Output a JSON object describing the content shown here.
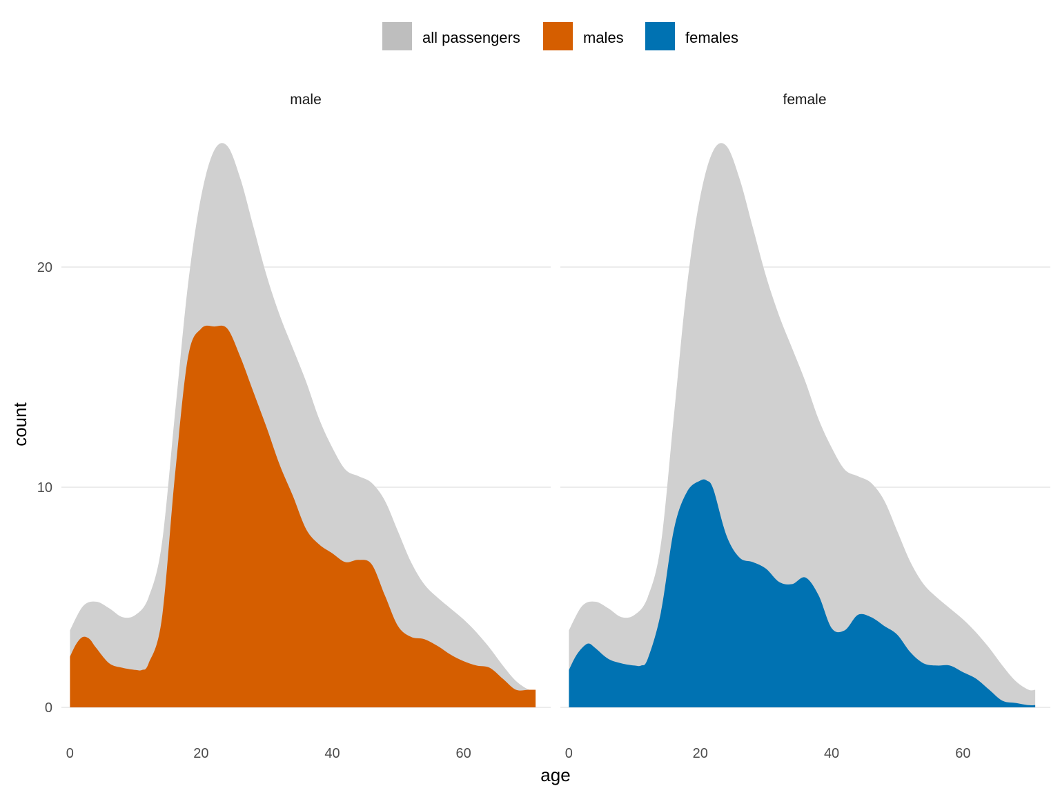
{
  "chart_data": {
    "type": "area",
    "xlabel": "age",
    "ylabel": "count",
    "xlim": [
      -1.3,
      73.3
    ],
    "ylim": [
      0,
      26
    ],
    "x_ticks": [
      0,
      20,
      40,
      60
    ],
    "y_ticks": [
      0,
      10,
      20
    ],
    "grid": true,
    "legend_position": "top",
    "legend": [
      {
        "label": "all passengers",
        "color": "#bebebe"
      },
      {
        "label": "males",
        "color": "#d55e00"
      },
      {
        "label": "females",
        "color": "#0072b2"
      }
    ],
    "all_passengers_color": "#d0d0d0",
    "facets": [
      {
        "label": "male",
        "fill_color": "#d55e00",
        "all_passengers": {
          "x": [
            0,
            2,
            4,
            6,
            8,
            10,
            12,
            14,
            16,
            18,
            20,
            22,
            24,
            26,
            28,
            30,
            32,
            34,
            36,
            38,
            40,
            42,
            44,
            46,
            48,
            50,
            52,
            54,
            56,
            58,
            60,
            62,
            64,
            66,
            68,
            70,
            71
          ],
          "y": [
            3.5,
            4.6,
            4.8,
            4.5,
            4.1,
            4.2,
            5.0,
            7.4,
            13.3,
            19.2,
            23.2,
            25.3,
            25.5,
            24.0,
            21.8,
            19.6,
            17.8,
            16.3,
            14.8,
            13.1,
            11.8,
            10.8,
            10.5,
            10.2,
            9.4,
            8.0,
            6.6,
            5.6,
            5.0,
            4.5,
            4.0,
            3.4,
            2.7,
            1.9,
            1.2,
            0.8,
            0.8
          ]
        },
        "group": {
          "x": [
            0,
            1,
            2,
            3,
            4,
            6,
            8,
            10,
            11,
            12,
            14,
            16,
            18,
            20,
            22,
            24,
            26,
            28,
            30,
            32,
            34,
            36,
            38,
            40,
            42,
            44,
            46,
            48,
            50,
            52,
            54,
            56,
            58,
            60,
            62,
            64,
            66,
            68,
            70,
            71
          ],
          "y": [
            2.3,
            2.9,
            3.2,
            3.1,
            2.7,
            2.0,
            1.8,
            1.7,
            1.7,
            2.0,
            4.0,
            10.5,
            15.9,
            17.2,
            17.3,
            17.2,
            15.9,
            14.3,
            12.7,
            11.0,
            9.6,
            8.1,
            7.4,
            7.0,
            6.6,
            6.7,
            6.5,
            5.1,
            3.7,
            3.2,
            3.1,
            2.8,
            2.4,
            2.1,
            1.9,
            1.8,
            1.3,
            0.8,
            0.8,
            0.8
          ]
        }
      },
      {
        "label": "female",
        "fill_color": "#0072b2",
        "all_passengers": {
          "x": [
            0,
            2,
            4,
            6,
            8,
            10,
            12,
            14,
            16,
            18,
            20,
            22,
            24,
            26,
            28,
            30,
            32,
            34,
            36,
            38,
            40,
            42,
            44,
            46,
            48,
            50,
            52,
            54,
            56,
            58,
            60,
            62,
            64,
            66,
            68,
            70,
            71
          ],
          "y": [
            3.5,
            4.6,
            4.8,
            4.5,
            4.1,
            4.2,
            5.0,
            7.4,
            13.3,
            19.2,
            23.2,
            25.3,
            25.5,
            24.0,
            21.8,
            19.6,
            17.8,
            16.3,
            14.8,
            13.1,
            11.8,
            10.8,
            10.5,
            10.2,
            9.4,
            8.0,
            6.6,
            5.6,
            5.0,
            4.5,
            4.0,
            3.4,
            2.7,
            1.9,
            1.2,
            0.8,
            0.8
          ]
        },
        "group": {
          "x": [
            0,
            1,
            2,
            3,
            4,
            6,
            8,
            10,
            11,
            12,
            14,
            16,
            18,
            20,
            21,
            22,
            24,
            26,
            28,
            30,
            32,
            34,
            36,
            38,
            40,
            42,
            44,
            46,
            48,
            50,
            52,
            54,
            56,
            58,
            60,
            62,
            64,
            66,
            68,
            70,
            71
          ],
          "y": [
            1.7,
            2.3,
            2.7,
            2.9,
            2.7,
            2.2,
            2.0,
            1.9,
            1.9,
            2.2,
            4.3,
            8.1,
            9.8,
            10.3,
            10.3,
            9.9,
            7.8,
            6.8,
            6.6,
            6.3,
            5.7,
            5.6,
            5.9,
            5.1,
            3.6,
            3.5,
            4.2,
            4.1,
            3.7,
            3.3,
            2.5,
            2.0,
            1.9,
            1.9,
            1.6,
            1.3,
            0.8,
            0.3,
            0.2,
            0.1,
            0.1
          ]
        }
      }
    ]
  }
}
